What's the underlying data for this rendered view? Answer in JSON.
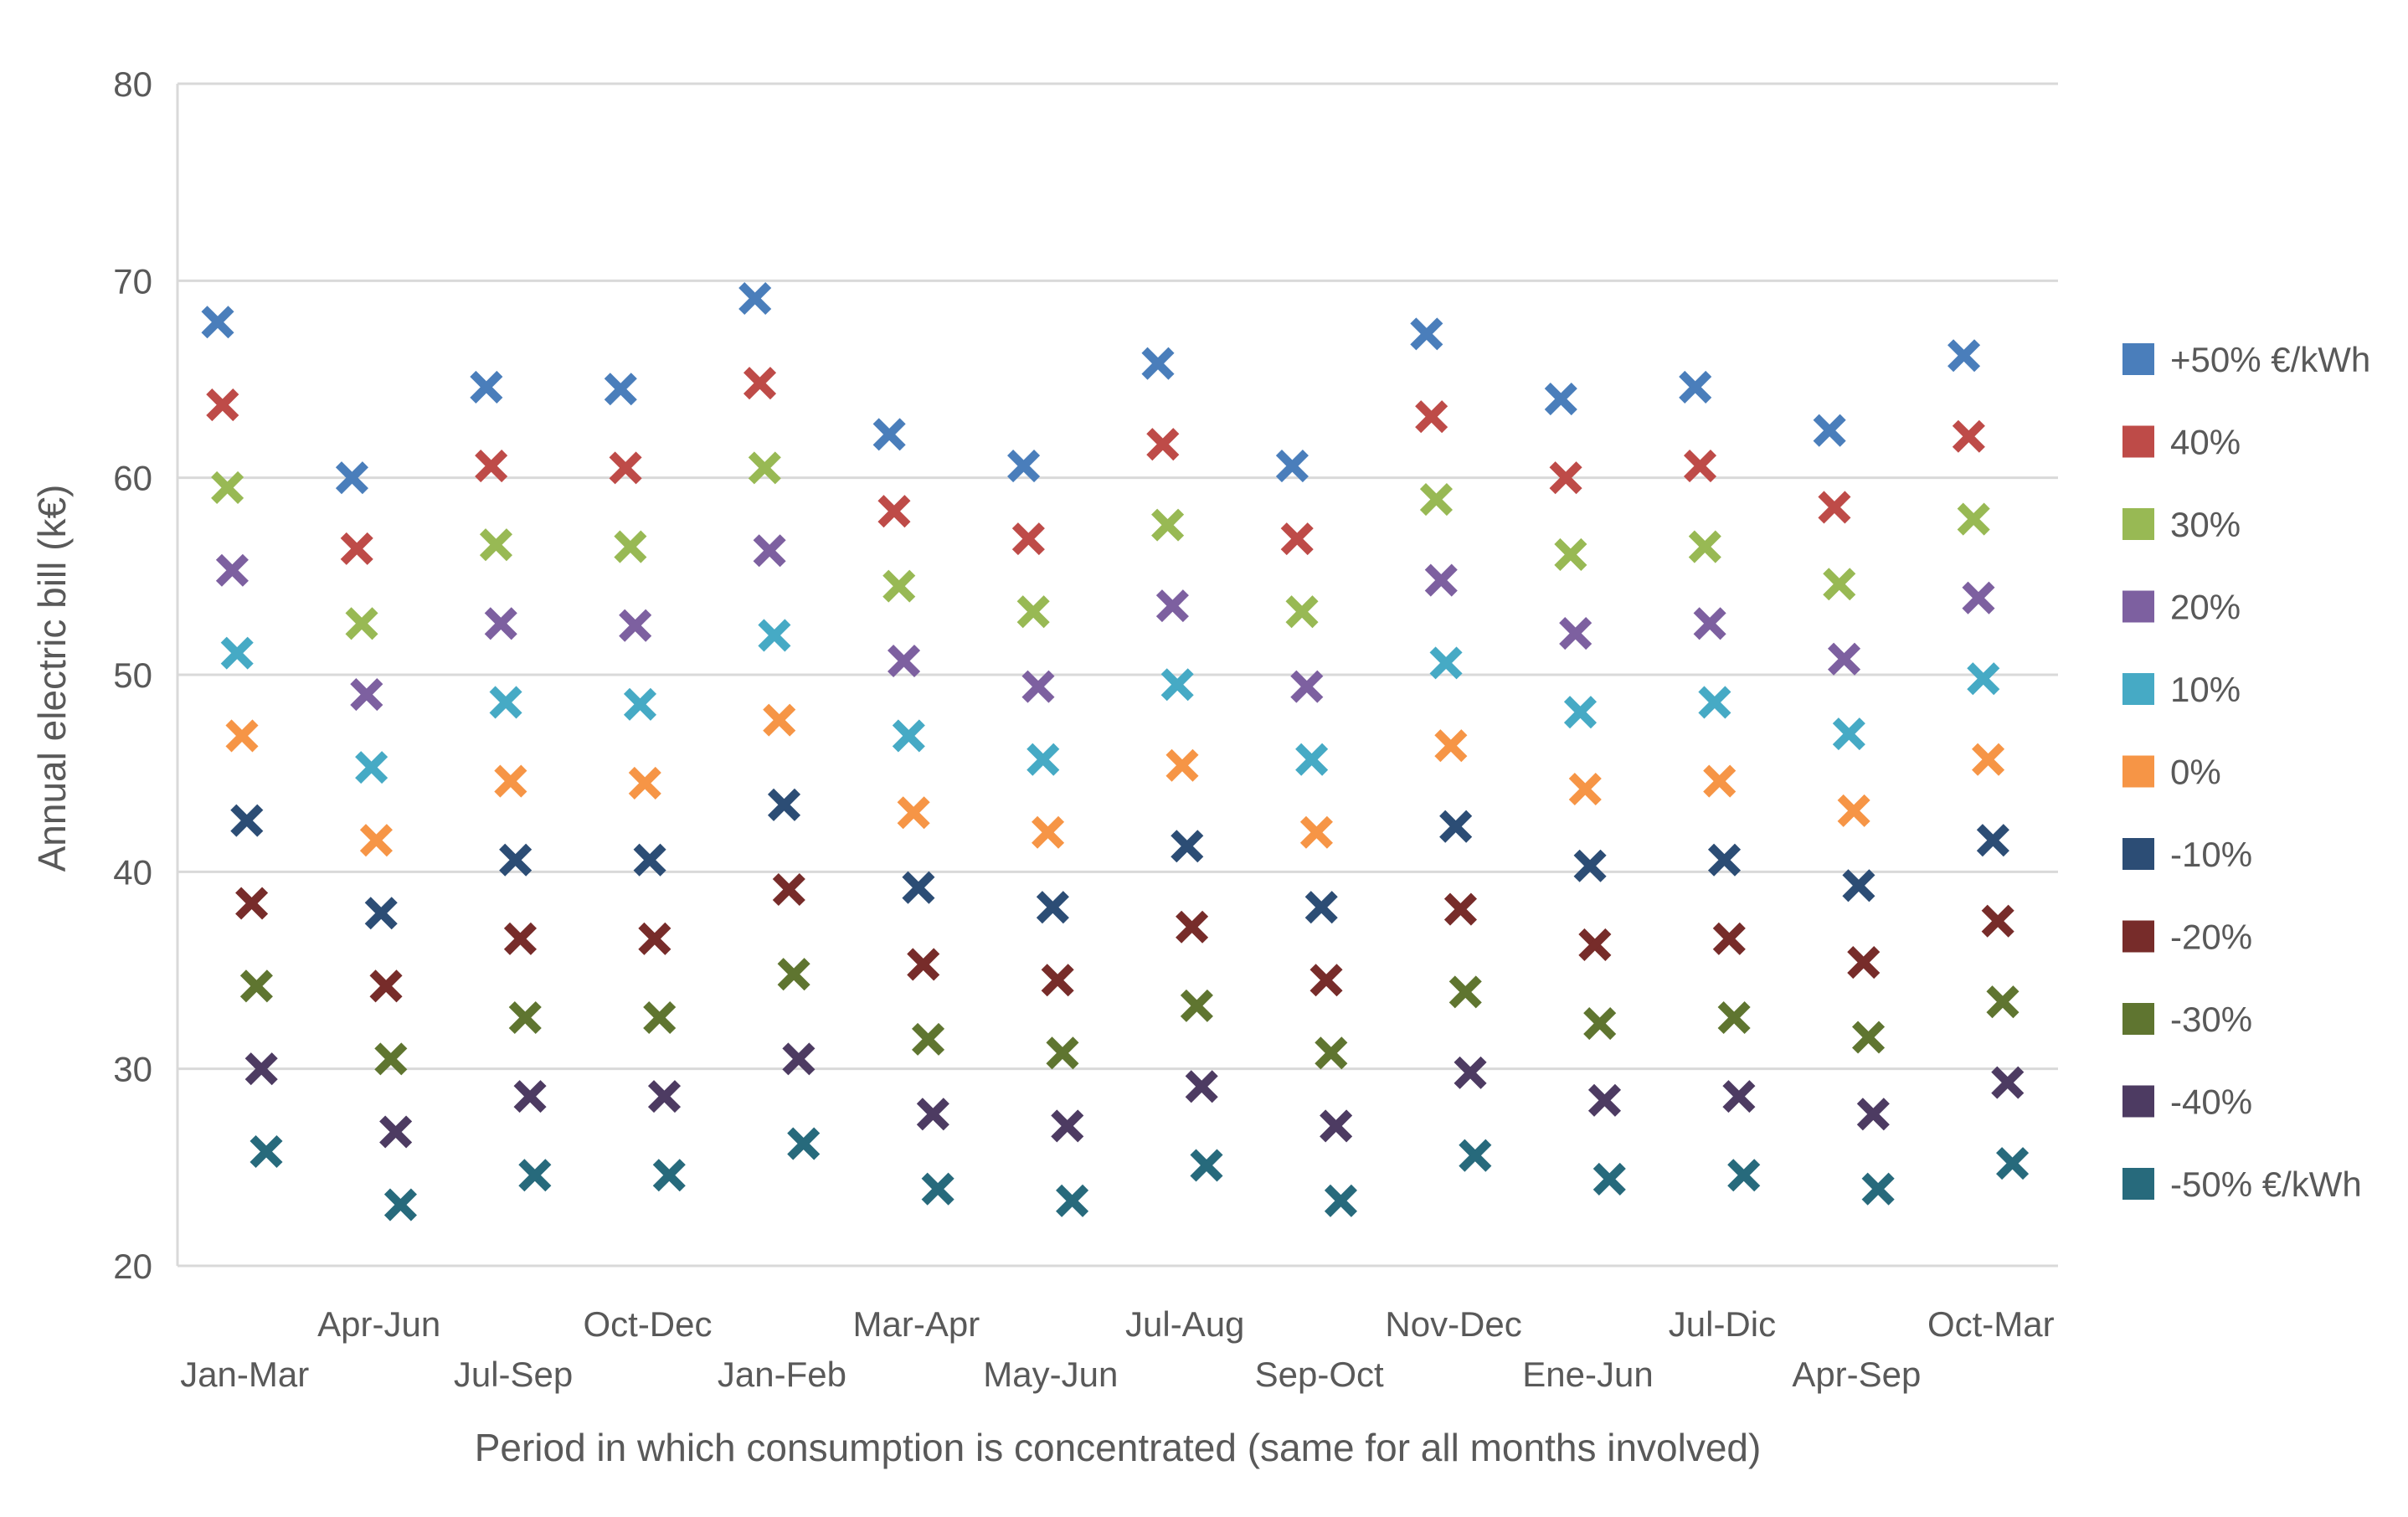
{
  "chart_data": {
    "type": "scatter",
    "title": "",
    "xlabel": "Period in which consumption is concentrated (same for all months involved)",
    "ylabel": "Annual electric bill (k€)",
    "ylim": [
      20,
      80
    ],
    "yticks": [
      20,
      30,
      40,
      50,
      60,
      70,
      80
    ],
    "grid": true,
    "legend_position": "right",
    "categories": [
      "Jan-Mar",
      "Apr-Jun",
      "Jul-Sep",
      "Oct-Dec",
      "Jan-Feb",
      "Mar-Apr",
      "May-Jun",
      "Jul-Aug",
      "Sep-Oct",
      "Nov-Dec",
      "Ene-Jun",
      "Jul-Dic",
      "Apr-Sep",
      "Oct-Mar"
    ],
    "series": [
      {
        "name": "+50% €/kWh",
        "color": "#4a7ebb",
        "values": [
          67.9,
          60.0,
          64.6,
          64.5,
          69.1,
          62.2,
          60.6,
          65.8,
          60.6,
          67.3,
          64.0,
          64.6,
          62.4,
          66.2
        ]
      },
      {
        "name": "40%",
        "color": "#be4b48",
        "values": [
          63.7,
          56.4,
          60.6,
          60.5,
          64.8,
          58.3,
          56.9,
          61.7,
          56.9,
          63.1,
          60.0,
          60.6,
          58.5,
          62.1
        ]
      },
      {
        "name": "30%",
        "color": "#98b954",
        "values": [
          59.5,
          52.6,
          56.6,
          56.5,
          60.5,
          54.5,
          53.2,
          57.6,
          53.2,
          58.9,
          56.1,
          56.5,
          54.6,
          57.9
        ]
      },
      {
        "name": "20%",
        "color": "#7d60a0",
        "values": [
          55.3,
          49.0,
          52.6,
          52.5,
          56.3,
          50.7,
          49.4,
          53.5,
          49.4,
          54.8,
          52.1,
          52.6,
          50.8,
          53.9
        ]
      },
      {
        "name": "10%",
        "color": "#46aac5",
        "values": [
          51.1,
          45.3,
          48.6,
          48.5,
          52.0,
          46.9,
          45.7,
          49.5,
          45.7,
          50.6,
          48.1,
          48.6,
          47.0,
          49.8
        ]
      },
      {
        "name": "0%",
        "color": "#f69546",
        "values": [
          46.9,
          41.6,
          44.6,
          44.5,
          47.7,
          43.0,
          42.0,
          45.4,
          42.0,
          46.4,
          44.2,
          44.6,
          43.1,
          45.7
        ]
      },
      {
        "name": "-10%",
        "color": "#2c4d75",
        "values": [
          42.6,
          37.9,
          40.6,
          40.6,
          43.4,
          39.2,
          38.2,
          41.3,
          38.2,
          42.3,
          40.3,
          40.6,
          39.3,
          41.6
        ]
      },
      {
        "name": "-20%",
        "color": "#772c2a",
        "values": [
          38.4,
          34.2,
          36.6,
          36.6,
          39.1,
          35.3,
          34.5,
          37.2,
          34.5,
          38.1,
          36.3,
          36.6,
          35.4,
          37.5
        ]
      },
      {
        "name": "-30%",
        "color": "#5f7530",
        "values": [
          34.2,
          30.5,
          32.6,
          32.6,
          34.8,
          31.5,
          30.8,
          33.2,
          30.8,
          33.9,
          32.3,
          32.6,
          31.6,
          33.4
        ]
      },
      {
        "name": "-40%",
        "color": "#4d3b62",
        "values": [
          30.0,
          26.8,
          28.6,
          28.6,
          30.5,
          27.7,
          27.1,
          29.1,
          27.1,
          29.8,
          28.4,
          28.6,
          27.7,
          29.3
        ]
      },
      {
        "name": "-50% €/kWh",
        "color": "#276a7c",
        "values": [
          25.8,
          23.1,
          24.6,
          24.6,
          26.2,
          23.9,
          23.3,
          25.1,
          23.3,
          25.6,
          24.4,
          24.6,
          23.9,
          25.2
        ]
      }
    ]
  }
}
